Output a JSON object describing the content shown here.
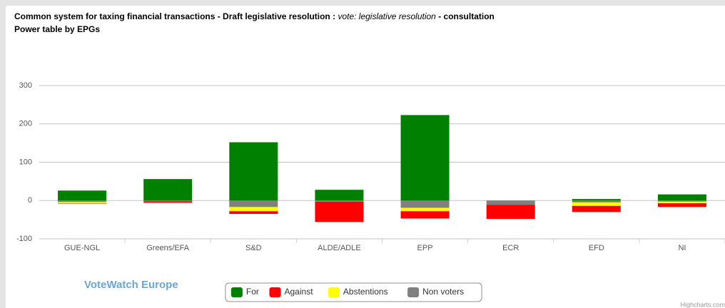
{
  "chart_data": {
    "type": "bar",
    "title": "Common system for taxing financial transactions  - Draft legislative resolution :",
    "title_italic": "vote: legislative resolution",
    "title_end": "- consultation",
    "subtitle": "Power table by EPGs",
    "categories": [
      "GUE-NGL",
      "Greens/EFA",
      "S&D",
      "ALDE/ADLE",
      "EPP",
      "ECR",
      "EFD",
      "NI"
    ],
    "series": [
      {
        "name": "For",
        "color": "#008000",
        "values": [
          26,
          56,
          152,
          28,
          223,
          0,
          4,
          16
        ]
      },
      {
        "name": "Against",
        "color": "#ff0000",
        "values": [
          -1,
          -4,
          -7,
          -53,
          -19,
          -37,
          -16,
          -10
        ]
      },
      {
        "name": "Abstentions",
        "color": "#ffff00",
        "values": [
          -4,
          0,
          -11,
          0,
          -9,
          0,
          -9,
          -4
        ]
      },
      {
        "name": "Non voters",
        "color": "#808080",
        "values": [
          -4,
          -2,
          -17,
          -3,
          -19,
          -11,
          -5,
          -3
        ]
      }
    ],
    "ylim": [
      -100,
      300
    ],
    "yticks": [
      -100,
      0,
      100,
      200,
      300
    ],
    "grid": true,
    "stacked": true,
    "legend": "bottom",
    "logo": "VoteWatch Europe",
    "credits": "Highcharts.com"
  }
}
